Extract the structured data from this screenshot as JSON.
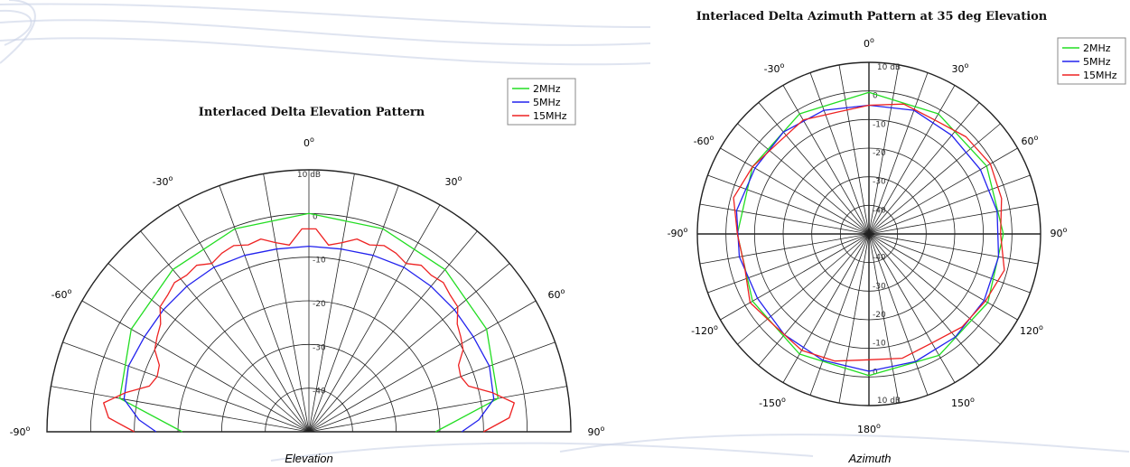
{
  "captions": {
    "left": "Elevation",
    "right": "Azimuth"
  },
  "colors": {
    "2MHz": "#22dd22",
    "5MHz": "#2222ee",
    "15MHz": "#ee2222",
    "grid": "#222222",
    "watermark": "#c9d2e6"
  },
  "chart_data": [
    {
      "type": "polar-line",
      "title": "Interlaced Delta Elevation Pattern",
      "angle_range_deg": [
        -90,
        90
      ],
      "angle_labels": [
        "-90",
        "-60",
        "-30",
        "0",
        "30",
        "60",
        "90"
      ],
      "radial_unit": "dB",
      "radial_range": [
        -50,
        10
      ],
      "radial_ticks": [
        "10 dB",
        "0",
        "-10",
        "-20",
        "-30",
        "-40"
      ],
      "legend": [
        "2MHz",
        "5MHz",
        "15MHz"
      ],
      "series": [
        {
          "name": "2MHz",
          "angles": [
            -90,
            -80,
            -60,
            -40,
            -20,
            0,
            20,
            40,
            60,
            80,
            90
          ],
          "values": [
            -21,
            -6,
            -3,
            -1.5,
            -0.5,
            0,
            -0.5,
            -1.5,
            -3,
            -6,
            -21
          ]
        },
        {
          "name": "5MHz",
          "angles": [
            -90,
            -86,
            -80,
            -70,
            -60,
            -50,
            -40,
            -30,
            -20,
            -10,
            0,
            10,
            20,
            30,
            40,
            50,
            60,
            70,
            80,
            86,
            90
          ],
          "values": [
            -15,
            -11,
            -7,
            -6,
            -6.5,
            -6.5,
            -6.5,
            -6.5,
            -7,
            -7.5,
            -7.5,
            -7.5,
            -7,
            -6.5,
            -6.5,
            -6.5,
            -6.5,
            -6,
            -7,
            -11,
            -15
          ]
        },
        {
          "name": "15MHz",
          "angles": [
            -90,
            -86,
            -82,
            -78,
            -74,
            -70,
            -66,
            -62,
            -58,
            -54,
            -50,
            -46,
            -42,
            -38,
            -34,
            -30,
            -26,
            -22,
            -18,
            -14,
            -10,
            -6,
            -2,
            2,
            6,
            10,
            14,
            18,
            22,
            26,
            30,
            34,
            38,
            42,
            46,
            50,
            54,
            58,
            62,
            66,
            70,
            74,
            78,
            82,
            86,
            90
          ],
          "values": [
            -10,
            -4,
            -2.5,
            -7,
            -12,
            -13,
            -12.5,
            -10,
            -9,
            -8,
            -5.5,
            -5,
            -4,
            -4.5,
            -4,
            -5.5,
            -4.5,
            -4,
            -5,
            -4.5,
            -6,
            -7,
            -3.5,
            -3.5,
            -7,
            -6,
            -4.5,
            -5,
            -4,
            -4.5,
            -5.5,
            -4,
            -4.5,
            -4,
            -5,
            -5.5,
            -8,
            -9,
            -10,
            -12.5,
            -13,
            -12,
            -7,
            -2.5,
            -4,
            -10
          ]
        }
      ]
    },
    {
      "type": "polar-line",
      "title": "Interlaced Delta Azimuth Pattern at 35 deg Elevation",
      "angle_range_deg": [
        -180,
        180
      ],
      "angle_labels": [
        "0",
        "30",
        "60",
        "90",
        "120",
        "150",
        "180",
        "-150",
        "-120",
        "-90",
        "-60",
        "-30"
      ],
      "radial_unit": "dB",
      "radial_range": [
        -50,
        10
      ],
      "radial_ticks": [
        "10 dB",
        "0",
        "-10",
        "-20",
        "-30",
        "-40"
      ],
      "legend": [
        "2MHz",
        "5MHz",
        "15MHz"
      ],
      "series": [
        {
          "name": "2MHz",
          "angles": [
            0,
            30,
            60,
            90,
            120,
            150,
            180,
            -150,
            -120,
            -90,
            -60,
            -30,
            0
          ],
          "values": [
            -0.5,
            -1.5,
            -2.5,
            -3,
            -2,
            -1,
            -0.5,
            -1.5,
            -3,
            -4,
            -3,
            -1.5,
            -0.5
          ]
        },
        {
          "name": "5MHz",
          "angles": [
            0,
            20,
            40,
            60,
            80,
            100,
            120,
            140,
            160,
            180,
            -160,
            -140,
            -120,
            -100,
            -80,
            -60,
            -40,
            -20,
            0
          ],
          "values": [
            -5,
            -4,
            -5,
            -5,
            -4.5,
            -4,
            -3.5,
            -3,
            -2.5,
            -2,
            -3,
            -4,
            -5,
            -4,
            -3,
            -4,
            -3.5,
            -4,
            -5
          ]
        },
        {
          "name": "15MHz",
          "angles": [
            0,
            15,
            30,
            45,
            60,
            75,
            90,
            105,
            120,
            135,
            150,
            165,
            180,
            -165,
            -150,
            -135,
            -120,
            -105,
            -90,
            -75,
            -60,
            -45,
            -30,
            -15,
            0
          ],
          "values": [
            -5,
            -3,
            -4,
            -2,
            -1,
            -2,
            -4,
            -1,
            -3,
            -4,
            -6,
            -5,
            -6,
            -4,
            -3,
            -4,
            -2,
            -5,
            -4,
            -1,
            -3,
            -5,
            -4,
            -6,
            -5
          ]
        }
      ]
    }
  ]
}
